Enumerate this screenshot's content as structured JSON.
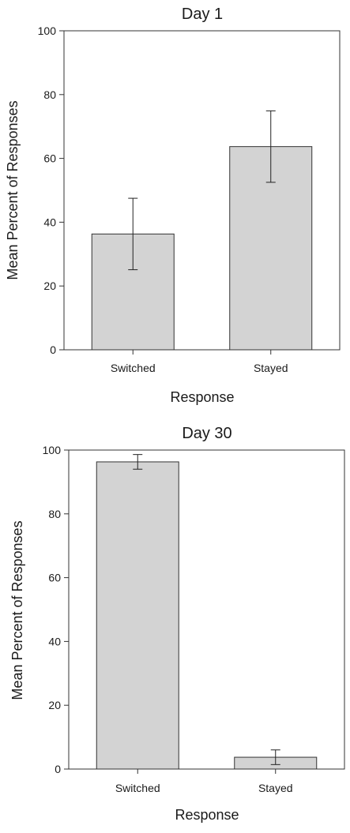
{
  "chart_data": [
    {
      "type": "bar",
      "title": "Day 1",
      "xlabel": "Response",
      "ylabel": "Mean Percent of Responses",
      "categories": [
        "Switched",
        "Stayed"
      ],
      "values": [
        36.3,
        63.7
      ],
      "errors": [
        11.2,
        11.2
      ],
      "ylim": [
        0,
        100
      ],
      "yticks": [
        0,
        20,
        40,
        60,
        80,
        100
      ],
      "ytick_labels": [
        "0",
        "20",
        "40",
        "60",
        "80",
        "100"
      ],
      "grid": false,
      "bar_color": "#d3d3d3"
    },
    {
      "type": "bar",
      "title": "Day 30",
      "xlabel": "Response",
      "ylabel": "Mean Percent of Responses",
      "categories": [
        "Switched",
        "Stayed"
      ],
      "values": [
        96.3,
        3.7
      ],
      "errors": [
        2.3,
        2.3
      ],
      "ylim": [
        0,
        100
      ],
      "yticks": [
        0,
        20,
        40,
        60,
        80,
        100
      ],
      "ytick_labels": [
        "0",
        "20",
        "40",
        "60",
        "80",
        "100"
      ],
      "grid": false,
      "bar_color": "#d3d3d3"
    }
  ]
}
